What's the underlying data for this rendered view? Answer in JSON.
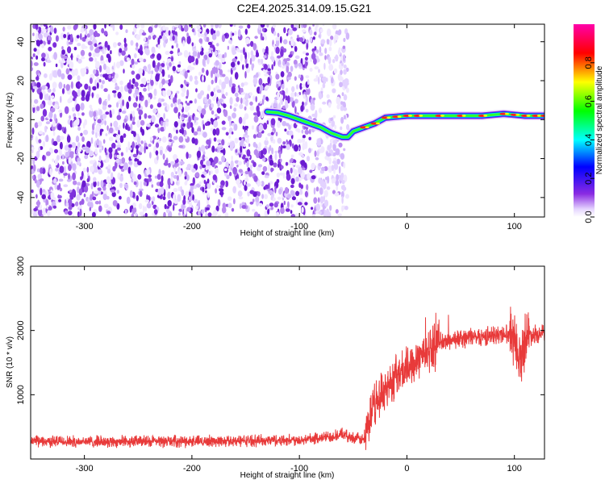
{
  "title": "C2E4.2025.314.09.15.G21",
  "chart_data": [
    {
      "type": "heatmap",
      "xlabel": "Height of straight line (km)",
      "ylabel": "Frequency (Hz)",
      "xlim": [
        -350,
        128
      ],
      "ylim": [
        -50,
        49
      ],
      "xticks": [
        -300,
        -200,
        -100,
        0,
        100
      ],
      "yticks": [
        -40,
        -20,
        0,
        20,
        40
      ],
      "colorbar": {
        "label": "Normalized spectral amplitude",
        "range": [
          0,
          1
        ],
        "ticks": [
          "0.0",
          "0.2",
          "0.4",
          "0.6",
          "0.8"
        ],
        "colors": [
          "#ffffff",
          "#8a2be2",
          "#0000ff",
          "#00ffff",
          "#00ff00",
          "#ffff00",
          "#ff0000",
          "#ff00ff"
        ]
      },
      "noise_region_x": [
        -350,
        -55
      ],
      "ridge": {
        "x": [
          -130,
          -120,
          -110,
          -100,
          -90,
          -80,
          -70,
          -60,
          -55,
          -50,
          -40,
          -30,
          -20,
          -10,
          0,
          10,
          30,
          50,
          70,
          90,
          100,
          110,
          120,
          128
        ],
        "y": [
          4,
          3.5,
          2,
          0,
          -2,
          -4,
          -7,
          -9,
          -9,
          -6,
          -4,
          -2,
          1,
          1.5,
          2,
          2,
          2,
          2,
          2,
          3,
          2.5,
          2,
          2,
          2
        ]
      },
      "grid": false
    },
    {
      "type": "line",
      "xlabel": "Height of straight line (km)",
      "ylabel": "SNR (10 * v/v)",
      "xlim": [
        -350,
        128
      ],
      "ylim": [
        0,
        3000
      ],
      "xticks": [
        -300,
        -200,
        -100,
        0,
        100
      ],
      "yticks": [
        1000,
        2000,
        3000
      ],
      "color": "#e83a3a",
      "series": [
        {
          "x": [
            -350,
            -300,
            -250,
            -200,
            -150,
            -100,
            -80,
            -60,
            -50,
            -40,
            -30,
            -20,
            -10,
            0,
            10,
            20,
            30,
            40,
            60,
            80,
            90,
            100,
            105,
            110,
            120,
            128
          ],
          "y": [
            280,
            270,
            275,
            275,
            285,
            300,
            330,
            380,
            330,
            300,
            850,
            1100,
            1300,
            1400,
            1600,
            1700,
            1800,
            1850,
            1900,
            1920,
            1950,
            1950,
            1500,
            1900,
            1950,
            1970
          ]
        }
      ],
      "grid": false
    }
  ]
}
